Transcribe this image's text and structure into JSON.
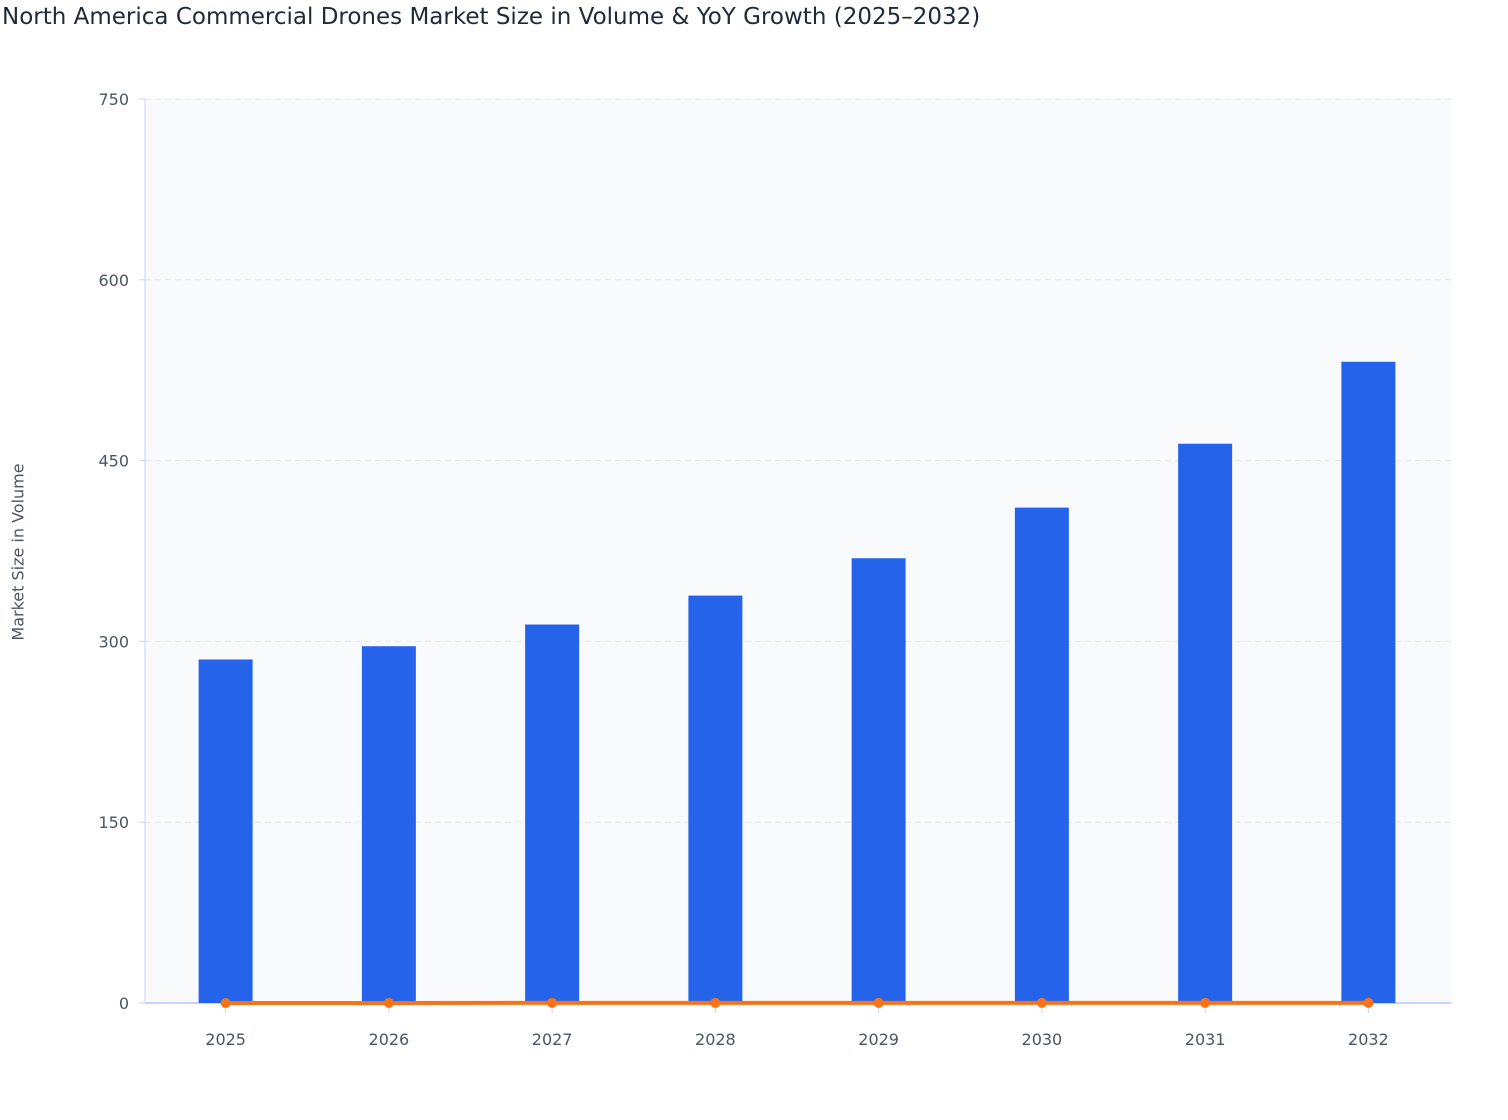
{
  "chart_data": {
    "type": "bar",
    "title": "North America Commercial Drones Market Size in Volume & YoY Growth (2025–2032)",
    "xlabel": "",
    "ylabel": "Market Size in Volume",
    "ylim": [
      0,
      750
    ],
    "yticks": [
      0,
      150,
      300,
      450,
      600,
      750
    ],
    "grid": true,
    "categories": [
      "2025",
      "2026",
      "2027",
      "2028",
      "2029",
      "2030",
      "2031",
      "2032"
    ],
    "series": [
      {
        "type": "bar",
        "color": "#2563eb",
        "values": [
          285,
          296,
          314,
          338,
          369,
          411,
          464,
          532
        ]
      },
      {
        "type": "line",
        "color": "#f97316",
        "values": [
          0,
          0.04,
          0.06,
          0.08,
          0.09,
          0.11,
          0.13,
          0.15
        ]
      }
    ]
  }
}
